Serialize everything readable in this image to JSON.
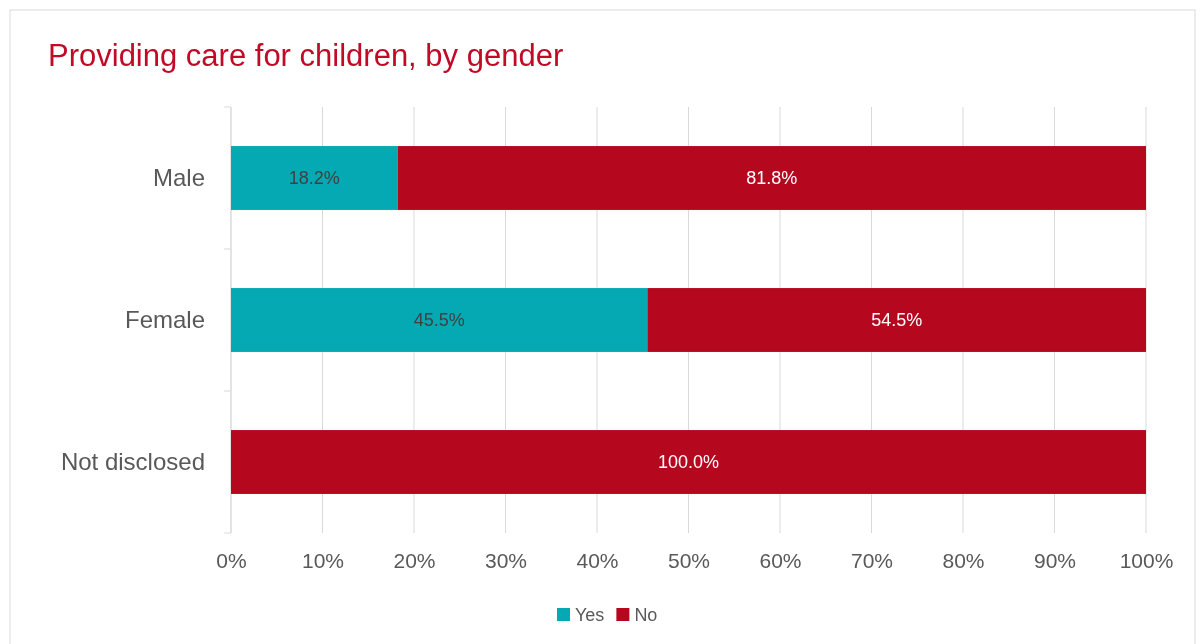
{
  "chart_data": {
    "type": "bar",
    "orientation": "horizontal",
    "stacked": true,
    "title": "Providing care for children, by gender",
    "categories": [
      "Male",
      "Female",
      "Not disclosed"
    ],
    "series": [
      {
        "name": "Yes",
        "color": "#05a9b3",
        "values": [
          18.2,
          45.5,
          0
        ],
        "value_labels": [
          "18.2%",
          "45.5%",
          null
        ]
      },
      {
        "name": "No",
        "color": "#b5081f",
        "values": [
          81.8,
          54.5,
          100
        ],
        "value_labels": [
          "81.8%",
          "54.5%",
          "100.0%"
        ]
      }
    ],
    "xlim": [
      0,
      100
    ],
    "xticks": [
      {
        "value": 0,
        "label": "0%"
      },
      {
        "value": 10,
        "label": "10%"
      },
      {
        "value": 20,
        "label": "20%"
      },
      {
        "value": 30,
        "label": "30%"
      },
      {
        "value": 40,
        "label": "40%"
      },
      {
        "value": 50,
        "label": "50%"
      },
      {
        "value": 60,
        "label": "60%"
      },
      {
        "value": 70,
        "label": "70%"
      },
      {
        "value": 80,
        "label": "80%"
      },
      {
        "value": 90,
        "label": "90%"
      },
      {
        "value": 100,
        "label": "100%"
      }
    ],
    "grid": "x",
    "legend": "bottom"
  }
}
